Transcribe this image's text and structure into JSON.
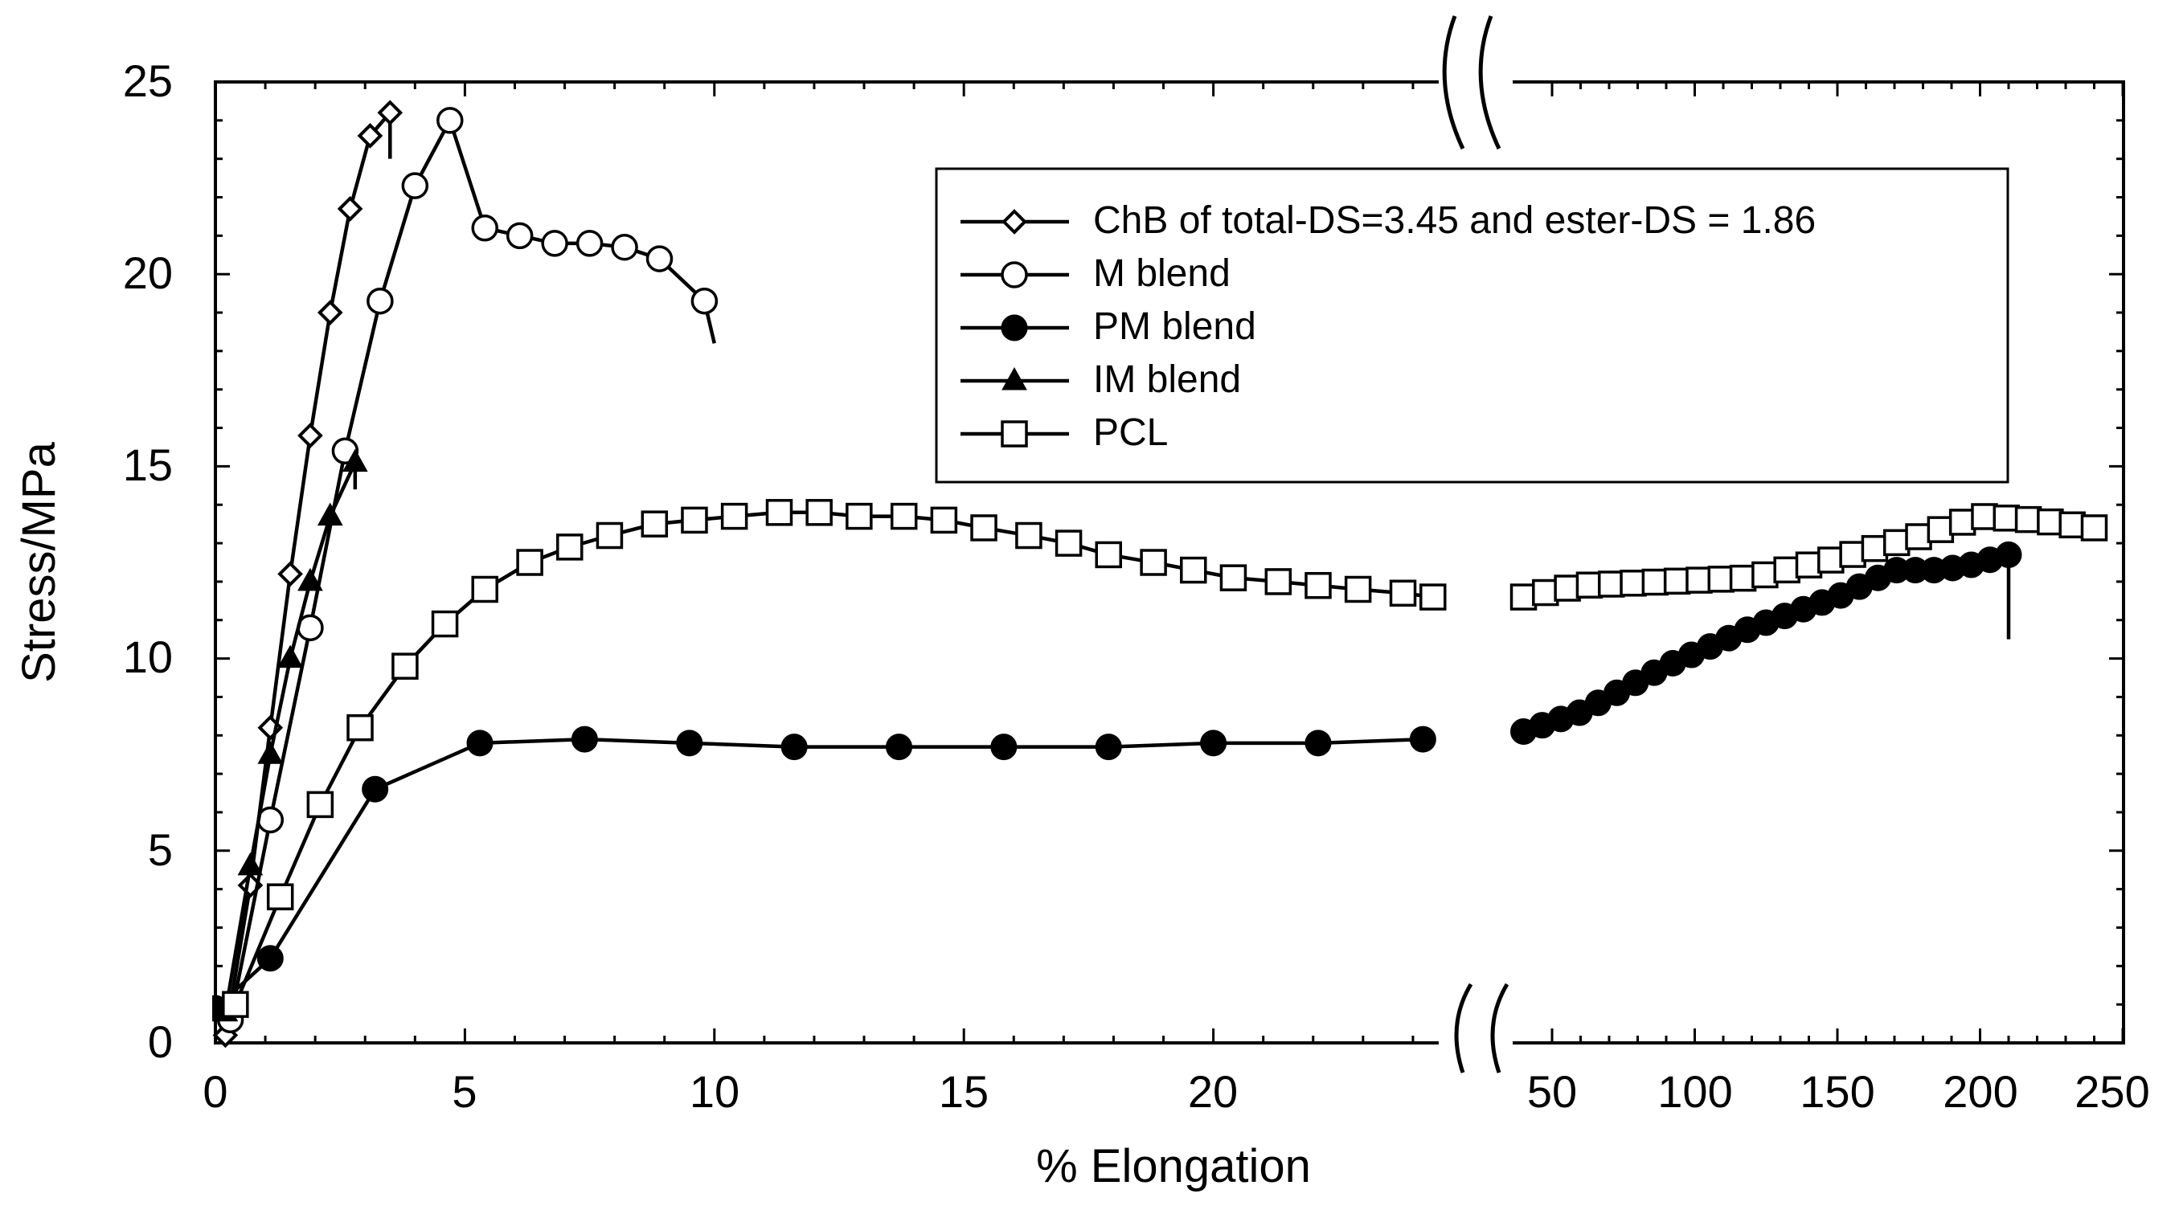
{
  "chart_data": {
    "type": "line",
    "title": "",
    "xlabel": "% Elongation",
    "ylabel": "Stress/MPa",
    "ylim": [
      0,
      25
    ],
    "x_axis": {
      "broken": true,
      "left_segment": {
        "range": [
          0,
          24.5
        ],
        "ticks": [
          "0",
          "5",
          "10",
          "15",
          "20"
        ]
      },
      "right_segment": {
        "range": [
          35,
          250
        ],
        "ticks": [
          "50",
          "100",
          "150",
          "200",
          "250"
        ]
      }
    },
    "y_ticks": [
      "0",
      "5",
      "10",
      "15",
      "20",
      "25"
    ],
    "grid": false,
    "legend_position": "top-right",
    "series": [
      {
        "name": "ChB of total-DS=3.45 and ester-DS = 1.86",
        "marker": "diamond-open",
        "points": [
          [
            0.2,
            0.2
          ],
          [
            0.7,
            4.1
          ],
          [
            1.1,
            8.2
          ],
          [
            1.5,
            12.2
          ],
          [
            1.9,
            15.8
          ],
          [
            2.3,
            19.0
          ],
          [
            2.7,
            21.7
          ],
          [
            3.1,
            23.6
          ],
          [
            3.5,
            24.2
          ]
        ],
        "end": [
          3.5,
          23.0
        ]
      },
      {
        "name": "M blend",
        "marker": "circle-open",
        "points": [
          [
            0.3,
            0.6
          ],
          [
            1.1,
            5.8
          ],
          [
            1.9,
            10.8
          ],
          [
            2.6,
            15.4
          ],
          [
            3.3,
            19.3
          ],
          [
            4.0,
            22.3
          ],
          [
            4.7,
            24.0
          ],
          [
            5.4,
            21.2
          ],
          [
            6.1,
            21.0
          ],
          [
            6.8,
            20.8
          ],
          [
            7.5,
            20.8
          ],
          [
            8.2,
            20.7
          ],
          [
            8.9,
            20.4
          ],
          [
            9.8,
            19.3
          ]
        ],
        "end": [
          10.0,
          18.2
        ]
      },
      {
        "name": "PM blend",
        "marker": "circle-filled",
        "points": [
          [
            0,
            0.9
          ],
          [
            1.1,
            2.2
          ],
          [
            3.2,
            6.6
          ],
          [
            5.3,
            7.8
          ],
          [
            7.4,
            7.9
          ],
          [
            9.5,
            7.8
          ],
          [
            11.6,
            7.7
          ],
          [
            13.7,
            7.7
          ],
          [
            15.8,
            7.7
          ],
          [
            17.9,
            7.7
          ],
          [
            20.0,
            7.8
          ],
          [
            22.1,
            7.8
          ],
          [
            24.2,
            7.9
          ]
        ],
        "points_right": [
          [
            40,
            8.1
          ],
          [
            60,
            8.6
          ],
          [
            90,
            9.8
          ],
          [
            120,
            10.8
          ],
          [
            150,
            11.6
          ],
          [
            170,
            12.3
          ],
          [
            185,
            12.3
          ],
          [
            195,
            12.4
          ],
          [
            210,
            12.7
          ]
        ],
        "end": [
          210,
          10.5
        ]
      },
      {
        "name": "IM blend",
        "marker": "triangle-filled",
        "points": [
          [
            0.2,
            0.8
          ],
          [
            0.7,
            4.6
          ],
          [
            1.1,
            7.5
          ],
          [
            1.5,
            10.0
          ],
          [
            1.9,
            12.0
          ],
          [
            2.3,
            13.7
          ],
          [
            2.8,
            15.1
          ]
        ],
        "end": [
          2.8,
          14.4
        ]
      },
      {
        "name": "PCL",
        "marker": "square-open",
        "points": [
          [
            0.4,
            1.0
          ],
          [
            1.3,
            3.8
          ],
          [
            2.1,
            6.2
          ],
          [
            2.9,
            8.2
          ],
          [
            3.8,
            9.8
          ],
          [
            4.6,
            10.9
          ],
          [
            5.4,
            11.8
          ],
          [
            6.3,
            12.5
          ],
          [
            7.1,
            12.9
          ],
          [
            7.9,
            13.2
          ],
          [
            8.8,
            13.5
          ],
          [
            9.6,
            13.6
          ],
          [
            10.4,
            13.7
          ],
          [
            11.3,
            13.8
          ],
          [
            12.1,
            13.8
          ],
          [
            12.9,
            13.7
          ],
          [
            13.8,
            13.7
          ],
          [
            14.6,
            13.6
          ],
          [
            15.4,
            13.4
          ],
          [
            16.3,
            13.2
          ],
          [
            17.1,
            13.0
          ],
          [
            17.9,
            12.7
          ],
          [
            18.8,
            12.5
          ],
          [
            19.6,
            12.3
          ],
          [
            20.4,
            12.1
          ],
          [
            21.3,
            12.0
          ],
          [
            22.1,
            11.9
          ],
          [
            22.9,
            11.8
          ],
          [
            23.8,
            11.7
          ],
          [
            24.4,
            11.6
          ]
        ],
        "points_right": [
          [
            40,
            11.6
          ],
          [
            60,
            11.9
          ],
          [
            90,
            12.0
          ],
          [
            120,
            12.1
          ],
          [
            150,
            12.6
          ],
          [
            180,
            13.2
          ],
          [
            200,
            13.7
          ],
          [
            220,
            13.6
          ],
          [
            240,
            13.4
          ]
        ]
      }
    ]
  }
}
